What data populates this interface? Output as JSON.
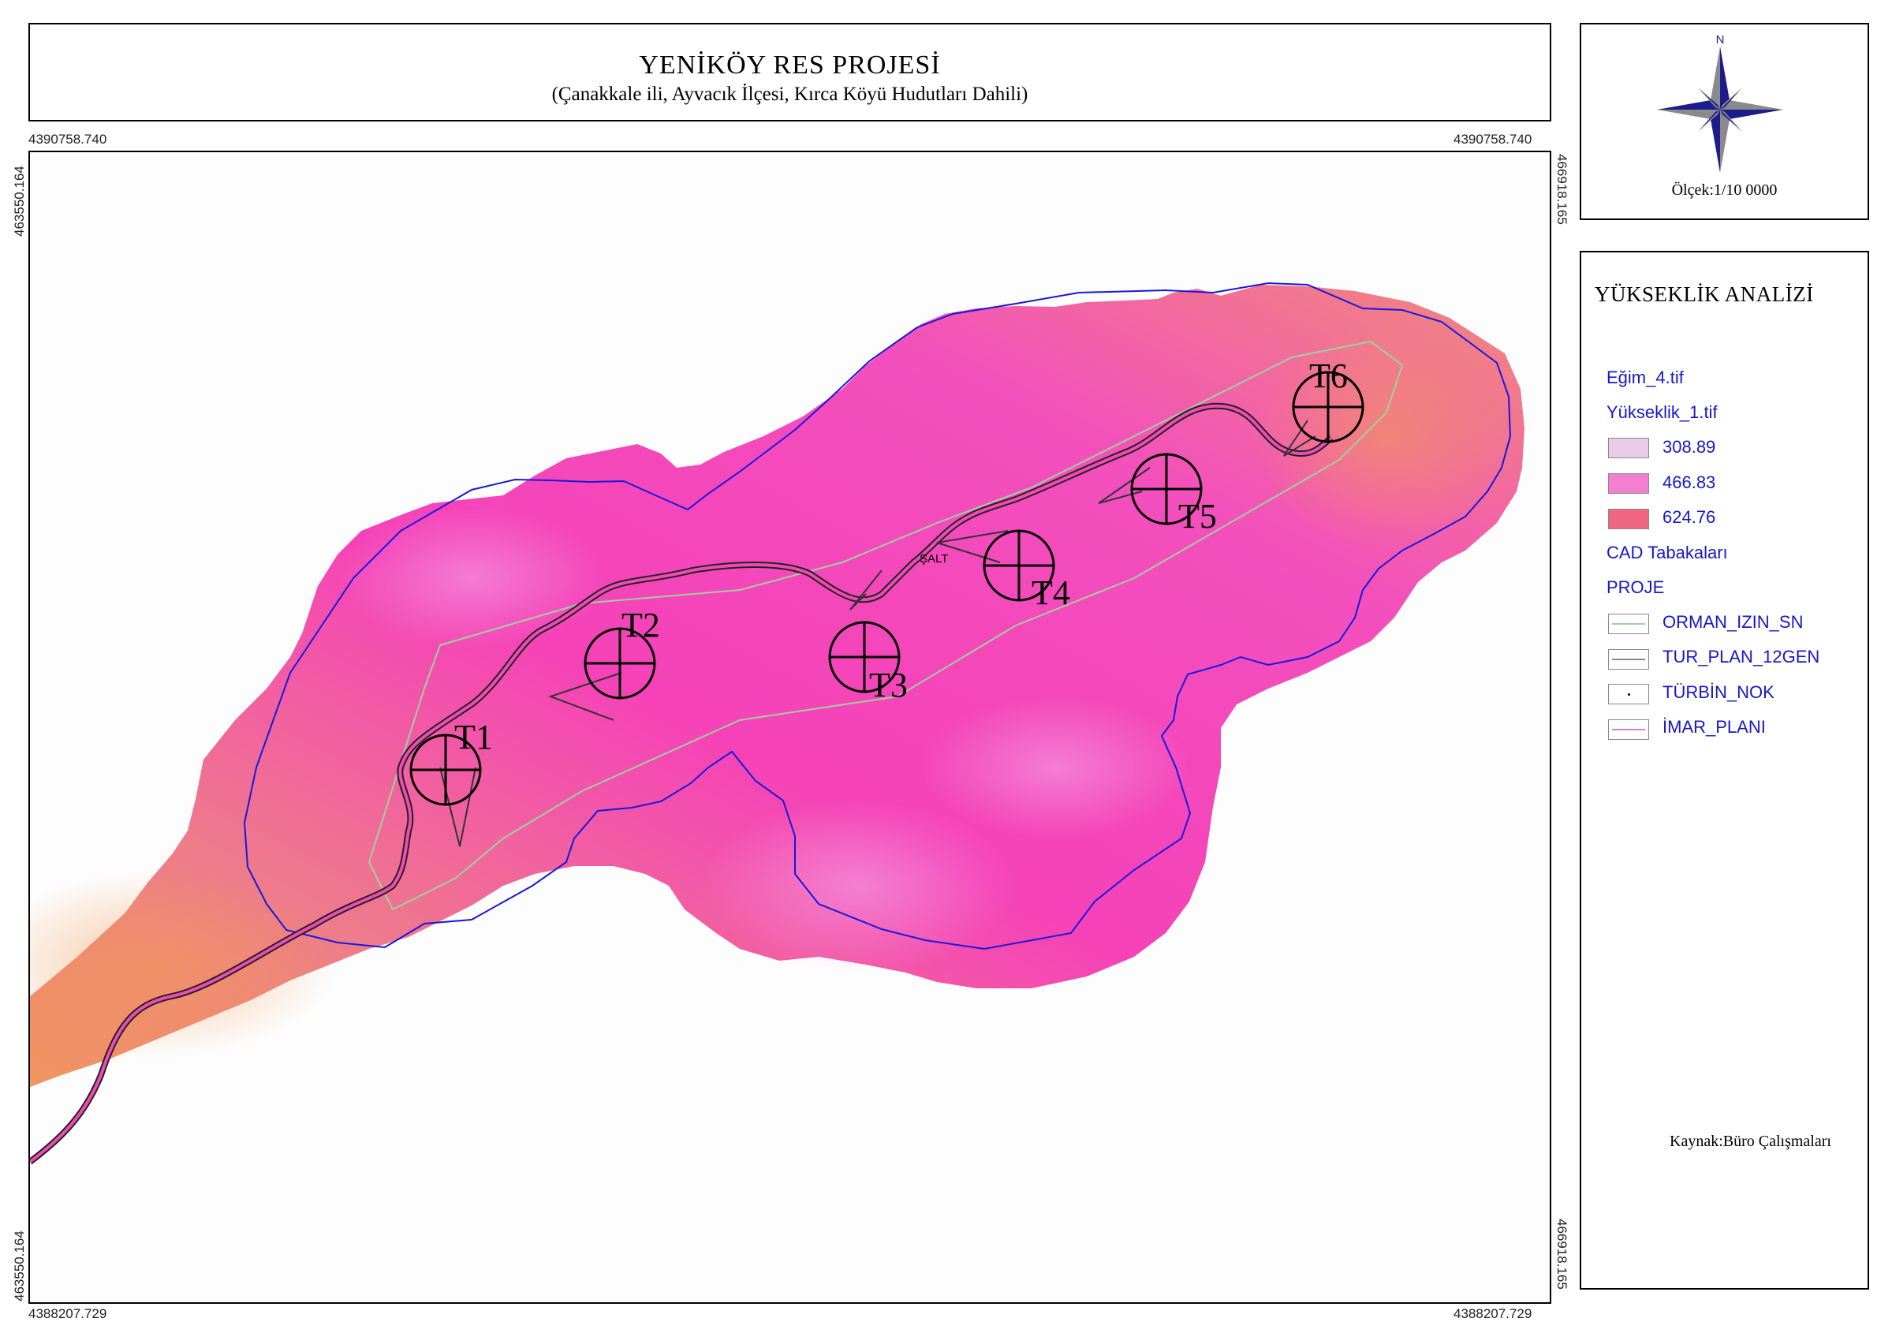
{
  "header": {
    "title": "YENİKÖY RES PROJESİ",
    "subtitle": "(Çanakkale ili, Ayvacık İlçesi, Kırca Köyü Hudutları Dahili)"
  },
  "coordinates": {
    "top_left": "4390758.740",
    "top_right": "4390758.740",
    "bottom_left": "4388207.729",
    "bottom_right": "4388207.729",
    "left_top": "463550.164",
    "left_bottom": "463550.164",
    "right_top": "466918.165",
    "right_bottom": "466918.165"
  },
  "compass": {
    "north_label": "N",
    "scale": "Ölçek:1/10 0000"
  },
  "legend": {
    "title": "YÜKSEKLİK ANALİZİ",
    "layer_slope": "Eğim_4.tif",
    "layer_elevation": "Yükseklik_1.tif",
    "elevation_classes": [
      {
        "label": "308.89",
        "color": "#e8cce8"
      },
      {
        "label": "466.83",
        "color": "#f27fcf"
      },
      {
        "label": "624.76",
        "color": "#f06681"
      }
    ],
    "cad_group": "CAD Tabakaları",
    "project_group": "PROJE",
    "cad_layers": [
      {
        "label": "ORMAN_IZIN_SN",
        "symbol": "line",
        "color": "#9fd09f"
      },
      {
        "label": "TUR_PLAN_12GEN",
        "symbol": "line",
        "color": "#8a8a8a"
      },
      {
        "label": "TÜRBİN_NOK",
        "symbol": "dot",
        "color": "#000000"
      },
      {
        "label": "İMAR_PLANI",
        "symbol": "line",
        "color": "#d67fd6"
      }
    ]
  },
  "map": {
    "turbines": [
      "T1",
      "T2",
      "T3",
      "T4",
      "T5",
      "T6"
    ],
    "substation_label": "ŞALT"
  },
  "source": "Kaynak:Büro Çalışmaları"
}
